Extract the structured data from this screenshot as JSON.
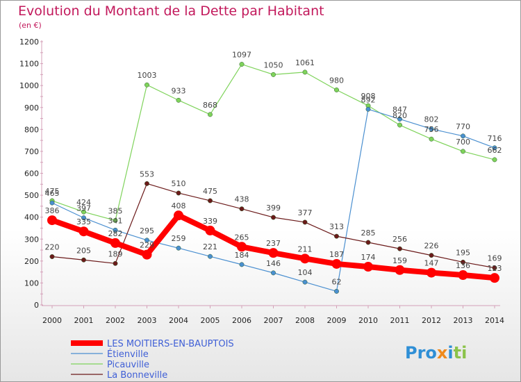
{
  "chart_data": {
    "type": "line",
    "title": "Evolution du Montant de la Dette par Habitant",
    "subtitle": "(en €)",
    "x": [
      "2000",
      "2001",
      "2002",
      "2003",
      "2004",
      "2005",
      "2006",
      "2007",
      "2008",
      "2009",
      "2010",
      "2011",
      "2012",
      "2013",
      "2014"
    ],
    "ylim": [
      0,
      1200
    ],
    "yticks": [
      0,
      100,
      200,
      300,
      400,
      500,
      600,
      700,
      800,
      900,
      1000,
      1100,
      1200
    ],
    "grid": false,
    "legend_position": "bottom-left",
    "series": [
      {
        "name": "LES MOITIERS-EN-BAUPTOIS",
        "color": "#ff0000",
        "values": [
          386,
          335,
          282,
          229,
          408,
          339,
          265,
          237,
          211,
          187,
          174,
          159,
          147,
          136,
          123
        ],
        "labels": [
          "386",
          "335",
          "282",
          "229",
          "408",
          "339",
          "265",
          "237",
          "211",
          "187",
          "174",
          "159",
          "147",
          "136",
          "123"
        ]
      },
      {
        "name": "Étienville",
        "color": "#4a8fd0",
        "values": [
          465,
          397,
          341,
          295,
          259,
          221,
          184,
          146,
          104,
          62,
          892,
          847,
          802,
          770,
          716
        ],
        "labels": [
          "465",
          "397",
          "341",
          "295",
          "259",
          "221",
          "184",
          "146",
          "104",
          "62",
          "892",
          "847",
          "802",
          "770",
          "716"
        ]
      },
      {
        "name": "Picauville",
        "color": "#7fd35b",
        "values": [
          475,
          424,
          385,
          1003,
          933,
          868,
          1097,
          1050,
          1061,
          980,
          908,
          820,
          756,
          700,
          662
        ],
        "labels": [
          "475",
          "424",
          "385",
          "1003",
          "933",
          "868",
          "1097",
          "1050",
          "1061",
          "980",
          "908",
          "820",
          "756",
          "700",
          "662"
        ]
      },
      {
        "name": "La Bonneville",
        "color": "#6b1a1a",
        "values": [
          220,
          205,
          189,
          553,
          510,
          475,
          438,
          399,
          377,
          313,
          285,
          256,
          226,
          195,
          169
        ],
        "labels": [
          "220",
          "205",
          "189",
          "553",
          "510",
          "475",
          "438",
          "399",
          "377",
          "313",
          "285",
          "256",
          "226",
          "195",
          "169"
        ]
      }
    ]
  },
  "logo": {
    "text": "Proxiti"
  }
}
